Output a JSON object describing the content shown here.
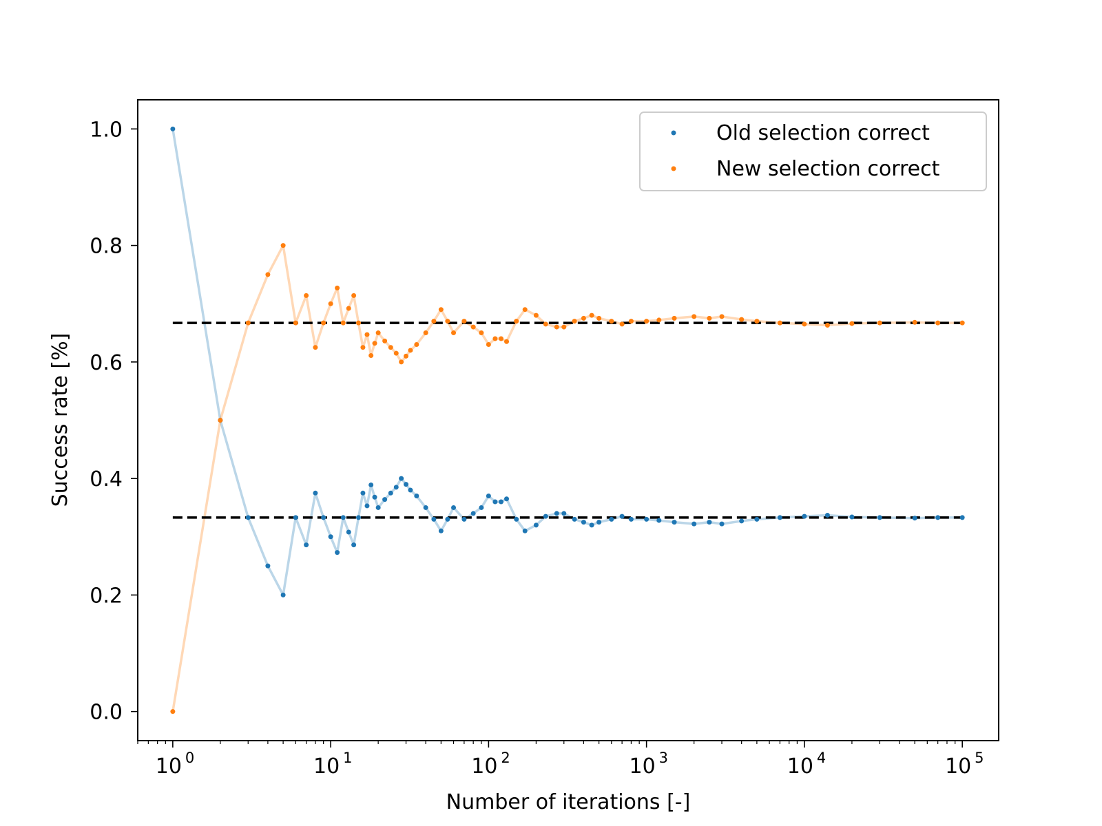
{
  "chart_data": {
    "type": "scatter",
    "xlabel": "Number of iterations [-]",
    "ylabel": "Success rate [%]",
    "xscale": "log",
    "xlim": [
      0.6,
      170000
    ],
    "ylim": [
      -0.05,
      1.05
    ],
    "grid": false,
    "legend_position": "top-right",
    "x_ticks": [
      {
        "value": 1,
        "base": "10",
        "exp": "0"
      },
      {
        "value": 10,
        "base": "10",
        "exp": "1"
      },
      {
        "value": 100,
        "base": "10",
        "exp": "2"
      },
      {
        "value": 1000,
        "base": "10",
        "exp": "3"
      },
      {
        "value": 10000,
        "base": "10",
        "exp": "4"
      },
      {
        "value": 100000,
        "base": "10",
        "exp": "5"
      }
    ],
    "y_ticks": [
      {
        "value": 0.0,
        "label": "0.0"
      },
      {
        "value": 0.2,
        "label": "0.2"
      },
      {
        "value": 0.4,
        "label": "0.4"
      },
      {
        "value": 0.6,
        "label": "0.6"
      },
      {
        "value": 0.8,
        "label": "0.8"
      },
      {
        "value": 1.0,
        "label": "1.0"
      }
    ],
    "series": [
      {
        "name": "Old selection correct",
        "color": "#1f77b4",
        "x": [
          1,
          2,
          3,
          4,
          5,
          6,
          7,
          8,
          9,
          10,
          11,
          12,
          13,
          14,
          15,
          16,
          17,
          18,
          19,
          20,
          22,
          24,
          26,
          28,
          30,
          32,
          35,
          40,
          45,
          50,
          55,
          60,
          70,
          80,
          90,
          100,
          110,
          120,
          130,
          150,
          170,
          200,
          230,
          270,
          300,
          350,
          400,
          450,
          500,
          600,
          700,
          800,
          1000,
          1200,
          1500,
          2000,
          2500,
          3000,
          4000,
          5000,
          7000,
          10000,
          14000,
          20000,
          30000,
          50000,
          70000,
          100000
        ],
        "y": [
          1.0,
          0.5,
          0.333,
          0.25,
          0.2,
          0.333,
          0.286,
          0.375,
          0.333,
          0.3,
          0.273,
          0.333,
          0.308,
          0.286,
          0.333,
          0.375,
          0.353,
          0.389,
          0.368,
          0.35,
          0.364,
          0.375,
          0.385,
          0.4,
          0.39,
          0.38,
          0.37,
          0.35,
          0.33,
          0.31,
          0.33,
          0.35,
          0.33,
          0.34,
          0.35,
          0.37,
          0.36,
          0.36,
          0.365,
          0.33,
          0.31,
          0.32,
          0.335,
          0.34,
          0.34,
          0.33,
          0.325,
          0.32,
          0.325,
          0.33,
          0.335,
          0.33,
          0.33,
          0.328,
          0.325,
          0.322,
          0.325,
          0.322,
          0.327,
          0.33,
          0.333,
          0.335,
          0.337,
          0.334,
          0.333,
          0.332,
          0.333,
          0.333
        ]
      },
      {
        "name": "New selection correct",
        "color": "#ff7f0e",
        "x": [
          1,
          2,
          3,
          4,
          5,
          6,
          7,
          8,
          9,
          10,
          11,
          12,
          13,
          14,
          15,
          16,
          17,
          18,
          19,
          20,
          22,
          24,
          26,
          28,
          30,
          32,
          35,
          40,
          45,
          50,
          55,
          60,
          70,
          80,
          90,
          100,
          110,
          120,
          130,
          150,
          170,
          200,
          230,
          270,
          300,
          350,
          400,
          450,
          500,
          600,
          700,
          800,
          1000,
          1200,
          1500,
          2000,
          2500,
          3000,
          4000,
          5000,
          7000,
          10000,
          14000,
          20000,
          30000,
          50000,
          70000,
          100000
        ],
        "y": [
          0.0,
          0.5,
          0.667,
          0.75,
          0.8,
          0.667,
          0.714,
          0.625,
          0.667,
          0.7,
          0.727,
          0.667,
          0.692,
          0.714,
          0.667,
          0.625,
          0.647,
          0.611,
          0.632,
          0.65,
          0.636,
          0.625,
          0.615,
          0.6,
          0.61,
          0.62,
          0.63,
          0.65,
          0.67,
          0.69,
          0.67,
          0.65,
          0.67,
          0.66,
          0.65,
          0.63,
          0.64,
          0.64,
          0.635,
          0.67,
          0.69,
          0.68,
          0.665,
          0.66,
          0.66,
          0.67,
          0.675,
          0.68,
          0.675,
          0.67,
          0.665,
          0.67,
          0.67,
          0.672,
          0.675,
          0.678,
          0.675,
          0.678,
          0.673,
          0.67,
          0.667,
          0.665,
          0.663,
          0.666,
          0.667,
          0.668,
          0.667,
          0.667
        ]
      }
    ],
    "reference_lines": [
      {
        "y": 0.333,
        "x_range": [
          1,
          100000
        ],
        "style": "dashed",
        "color": "#000000"
      },
      {
        "y": 0.667,
        "x_range": [
          1,
          100000
        ],
        "style": "dashed",
        "color": "#000000"
      }
    ]
  }
}
